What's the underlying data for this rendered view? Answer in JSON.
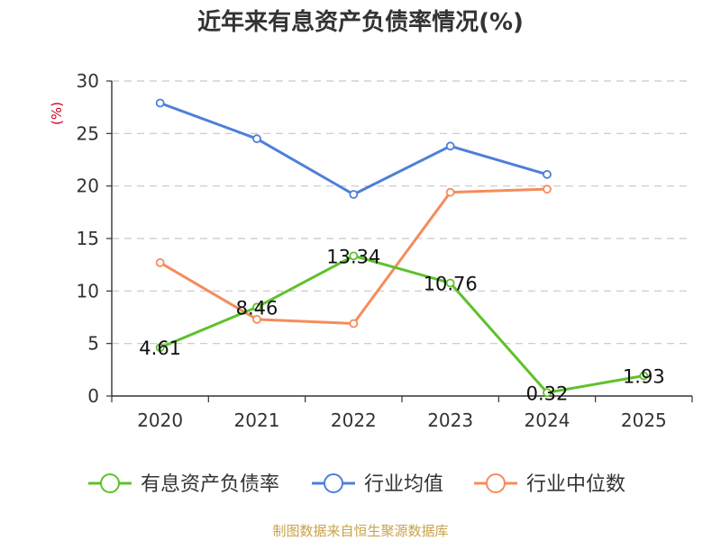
{
  "chart_data": {
    "type": "line",
    "title": "近年来有息资产负债率情况(%)",
    "unit_label": "(%)",
    "categories": [
      "2020",
      "2021",
      "2022",
      "2023",
      "2024",
      "2025"
    ],
    "ylim": [
      0,
      30
    ],
    "yticks": [
      0,
      5,
      10,
      15,
      20,
      25,
      30
    ],
    "grid": true,
    "legend_position": "bottom",
    "series": [
      {
        "name": "有息资产负债率",
        "color": "#5fc12c",
        "values": [
          4.61,
          8.46,
          13.34,
          10.76,
          0.32,
          1.93
        ],
        "labels": [
          "4.61",
          "8.46",
          "13.34",
          "10.76",
          "0.32",
          "1.93"
        ]
      },
      {
        "name": "行业均值",
        "color": "#4e7fd9",
        "values": [
          27.9,
          24.5,
          19.2,
          23.8,
          21.1,
          null
        ]
      },
      {
        "name": "行业中位数",
        "color": "#f58c5a",
        "values": [
          12.7,
          7.3,
          6.9,
          19.4,
          19.7,
          null
        ]
      }
    ]
  },
  "footer": {
    "source": "制图数据来自恒生聚源数据库"
  }
}
